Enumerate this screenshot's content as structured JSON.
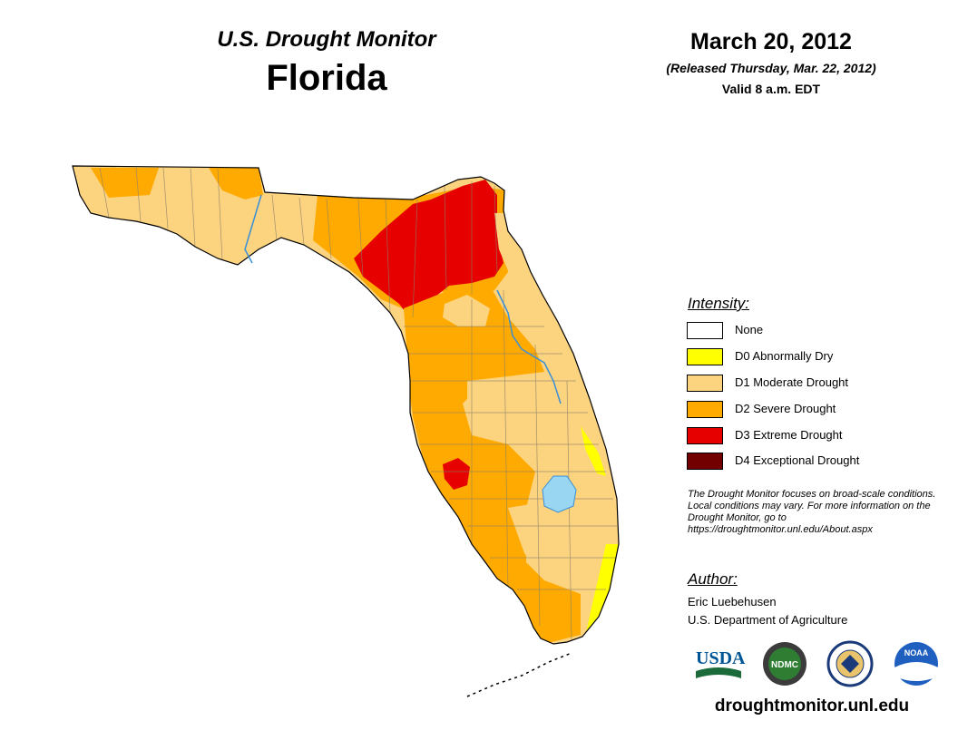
{
  "header": {
    "title": "U.S. Drought Monitor",
    "state": "Florida",
    "date": "March 20, 2012",
    "release": "(Released Thursday, Mar. 22, 2012)",
    "valid": "Valid 8 a.m. EDT"
  },
  "legend": {
    "title": "Intensity:",
    "items": [
      {
        "label": "None",
        "color": "#ffffff"
      },
      {
        "label": "D0 Abnormally Dry",
        "color": "#ffff00"
      },
      {
        "label": "D1 Moderate Drought",
        "color": "#fcd37f"
      },
      {
        "label": "D2 Severe Drought",
        "color": "#ffaa00"
      },
      {
        "label": "D3 Extreme Drought",
        "color": "#e60000"
      },
      {
        "label": "D4 Exceptional Drought",
        "color": "#730000"
      }
    ]
  },
  "note": "The Drought Monitor focuses on broad-scale conditions. Local conditions may vary. For more information on the Drought Monitor, go to https://droughtmonitor.unl.edu/About.aspx",
  "author": {
    "title": "Author:",
    "name": "Eric Luebehusen",
    "org": "U.S. Department of Agriculture"
  },
  "logos": {
    "usda": "USDA",
    "ndmc": "NDMC",
    "noaa": "NOAA"
  },
  "site_url": "droughtmonitor.unl.edu",
  "map_colors": {
    "water": "#99d6f2",
    "river": "#3a8fd6",
    "county_lines": "#8a7f6a"
  }
}
